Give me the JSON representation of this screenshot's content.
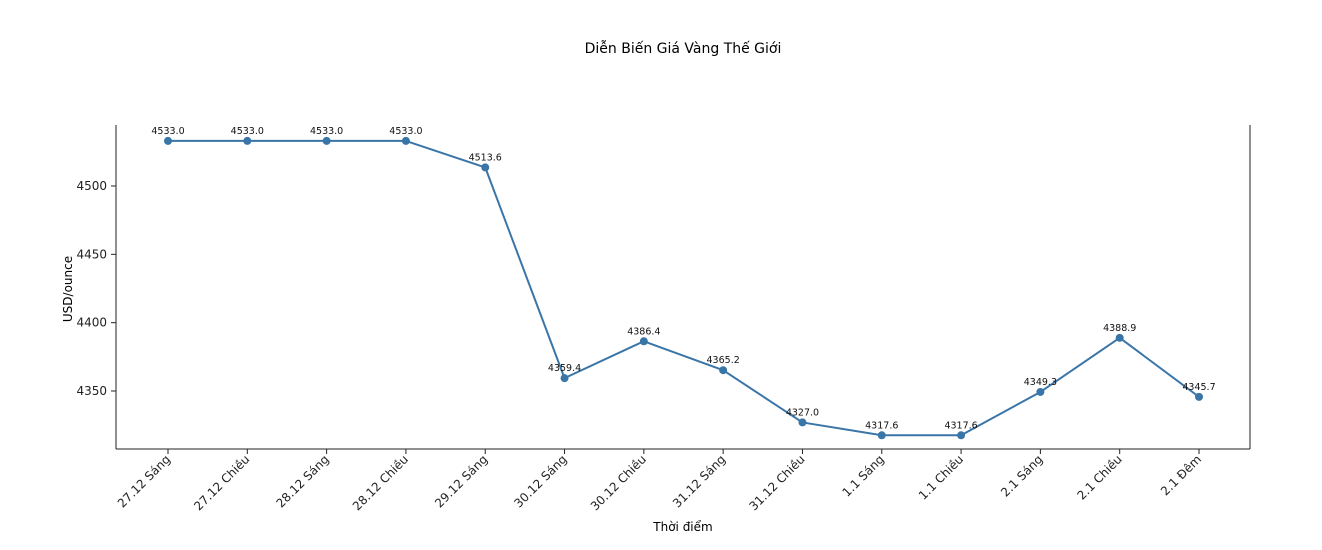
{
  "chart_data": {
    "type": "line",
    "title": "Diễn Biến Giá Vàng Thế Giới",
    "xlabel": "Thời điểm",
    "ylabel": "USD/ounce",
    "categories": [
      "27.12 Sáng",
      "27.12 Chiều",
      "28.12 Sáng",
      "28.12 Chiều",
      "29.12 Sáng",
      "30.12 Sáng",
      "30.12 Chiều",
      "31.12 Sáng",
      "31.12 Chiều",
      "1.1 Sáng",
      "1.1 Chiều",
      "2.1 Sáng",
      "2.1 Chiều",
      "2.1 Đêm"
    ],
    "series": [
      {
        "name": "Giá vàng",
        "color": "#3a75a8",
        "values": [
          4533.0,
          4533.0,
          4533.0,
          4533.0,
          4513.6,
          4359.4,
          4386.4,
          4365.2,
          4327.0,
          4317.6,
          4317.6,
          4349.3,
          4388.9,
          4345.7
        ],
        "labels": [
          "4533.0",
          "4533.0",
          "4533.0",
          "4533.0",
          "4513.6",
          "4359.4",
          "4386.4",
          "4365.2",
          "4327.0",
          "4317.6",
          "4317.6",
          "4349.3",
          "4388.9",
          "4345.7"
        ]
      }
    ],
    "yticks": [
      4350,
      4400,
      4450,
      4500
    ],
    "ylim": [
      4306,
      4544
    ],
    "grid": false,
    "legend": null,
    "spines": {
      "top": false,
      "left": true,
      "right": true,
      "bottom": true
    }
  }
}
